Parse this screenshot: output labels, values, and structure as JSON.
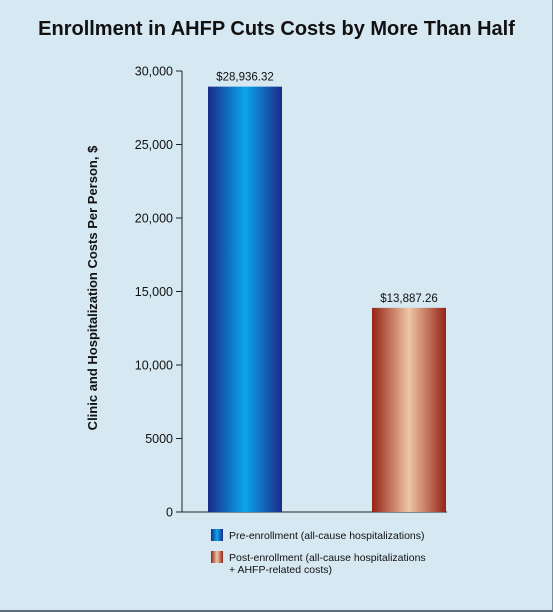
{
  "chart_data": {
    "type": "bar",
    "title": "Enrollment in AHFP Cuts Costs by More Than Half",
    "ylabel": "Clinic and Hospitalization Costs Per Person, $",
    "xlabel": "",
    "ylim": [
      0,
      30000
    ],
    "yticks": [
      0,
      5000,
      10000,
      15000,
      20000,
      25000,
      30000
    ],
    "ytick_labels": [
      "0",
      "5000",
      "10,000",
      "15,000",
      "20,000",
      "25,000",
      "30,000"
    ],
    "grid": false,
    "legend_position": "bottom",
    "series": [
      {
        "legend_lines": [
          "Pre-enrollment (all-cause hospitalizations)"
        ],
        "value": 28936.32,
        "data_label": "$28,936.32",
        "color": "#0f7ec9"
      },
      {
        "legend_lines": [
          "Post-enrollment (all-cause hospitalizations",
          "+ AHFP-related costs)"
        ],
        "value": 13887.26,
        "data_label": "$13,887.26",
        "color": "#b8553d"
      }
    ]
  }
}
